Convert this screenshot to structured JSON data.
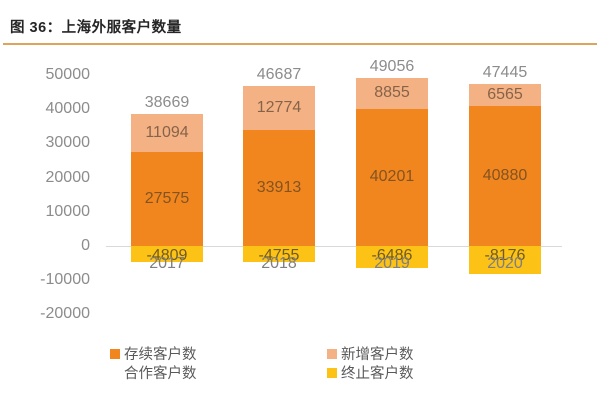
{
  "figure": {
    "title": "图 36：上海外服客户数量",
    "accent_rule_color": "#DCA45C"
  },
  "chart_data": {
    "type": "bar",
    "stacked": true,
    "title": "上海外服客户数量",
    "categories": [
      "2017",
      "2018",
      "2019",
      "2020"
    ],
    "series": [
      {
        "name": "存续客户数合作客户数",
        "role": "existing",
        "color": "#F0861D",
        "values": [
          27575,
          33913,
          40201,
          40880
        ]
      },
      {
        "name": "新增客户数",
        "role": "new",
        "color": "#F4B183",
        "values": [
          11094,
          12774,
          8855,
          6565
        ]
      },
      {
        "name": "终止客户数",
        "role": "terminated",
        "color": "#FCC216",
        "values": [
          -4809,
          -4755,
          -6486,
          -8176
        ]
      }
    ],
    "totals": [
      38669,
      46687,
      49056,
      47445
    ],
    "ylim": [
      -20000,
      50000
    ],
    "yticks": [
      50000,
      40000,
      30000,
      20000,
      10000,
      0,
      -10000,
      -20000
    ],
    "grid": "zero-line-only",
    "legend_position": "bottom",
    "zero_line_color": "#D9D9D9",
    "axis_label_color": "#8C8C8C"
  },
  "legend": {
    "items": [
      {
        "color": "#F0861D",
        "label": "存续客户数",
        "label_line2": "合作客户数"
      },
      {
        "color": "#F4B183",
        "label": "新增客户数"
      },
      {
        "color": "#FCC216",
        "label": "终止客户数"
      }
    ]
  }
}
